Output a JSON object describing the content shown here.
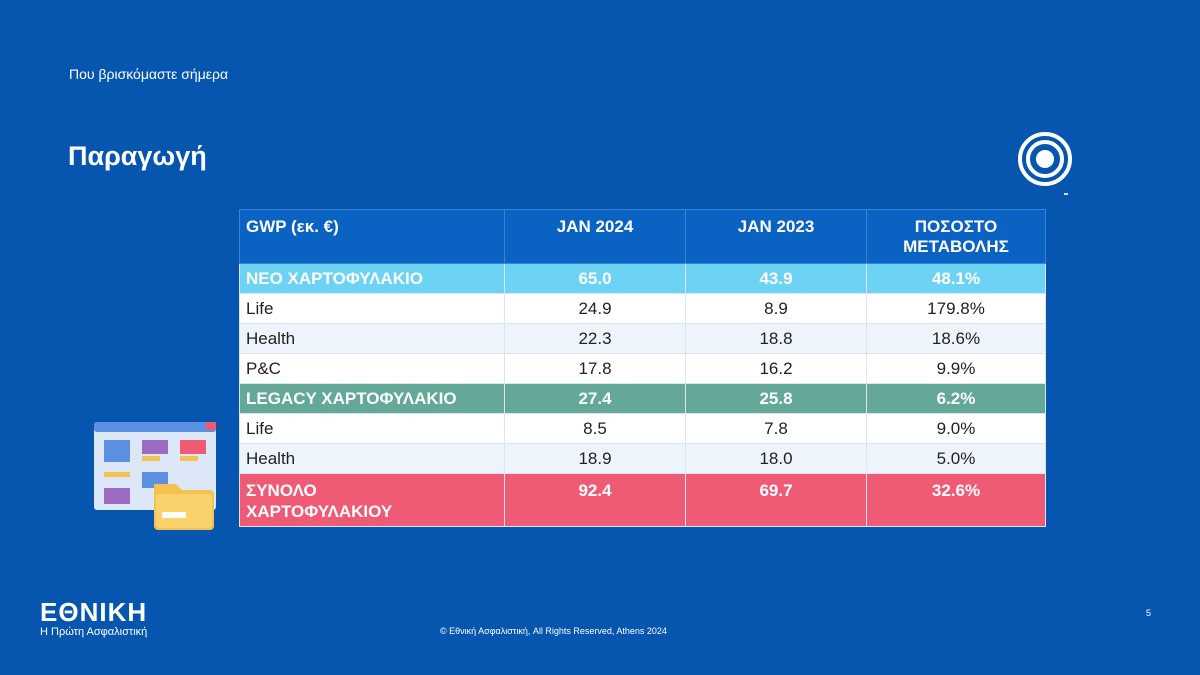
{
  "header": {
    "subtitle": "Που βρισκόμαστε σήμερα",
    "title": "Παραγωγή"
  },
  "table": {
    "columns": [
      "GWP (εκ. €)",
      "JAN 2024",
      "JAN 2023",
      "ΠΟΣΟΣΤΟ\nΜΕΤΑΒΟΛΗΣ"
    ],
    "rows": [
      {
        "label": "ΝΕΟ ΧΑΡΤΟΦΥΛΑΚΙΟ",
        "jan2024": "65.0",
        "jan2023": "43.9",
        "change": "48.1%"
      },
      {
        "label": "Life",
        "jan2024": "24.9",
        "jan2023": "8.9",
        "change": "179.8%"
      },
      {
        "label": "Health",
        "jan2024": "22.3",
        "jan2023": "18.8",
        "change": "18.6%"
      },
      {
        "label": "P&C",
        "jan2024": "17.8",
        "jan2023": "16.2",
        "change": "9.9%"
      },
      {
        "label": "LEGACY ΧΑΡΤΟΦΥΛΑΚΙΟ",
        "jan2024": "27.4",
        "jan2023": "25.8",
        "change": "6.2%"
      },
      {
        "label": "Life",
        "jan2024": "8.5",
        "jan2023": "7.8",
        "change": "9.0%"
      },
      {
        "label": "Health",
        "jan2024": "18.9",
        "jan2023": "18.0",
        "change": "5.0%"
      },
      {
        "label": "ΣΥΝΟΛΟ\nΧΑΡΤΟΦΥΛΑΚΙΟΥ",
        "jan2024": "92.4",
        "jan2023": "69.7",
        "change": "32.6%"
      }
    ]
  },
  "footer": {
    "logo": "ΕΘΝΙΚΗ",
    "tagline": "Η Πρώτη Ασφαλιστική",
    "copyright": "© Εθνική Ασφαλιστική, All Rights Reserved, Athens 2024",
    "page_number": "5"
  },
  "icons": {
    "target": "target-icon",
    "illustration": "dashboard-folder-illustration"
  },
  "colors": {
    "background": "#0656b0",
    "header_row": "#0a63c2",
    "new_portfolio": "#6dd3f5",
    "legacy_portfolio": "#63a898",
    "total": "#ef5a74"
  }
}
